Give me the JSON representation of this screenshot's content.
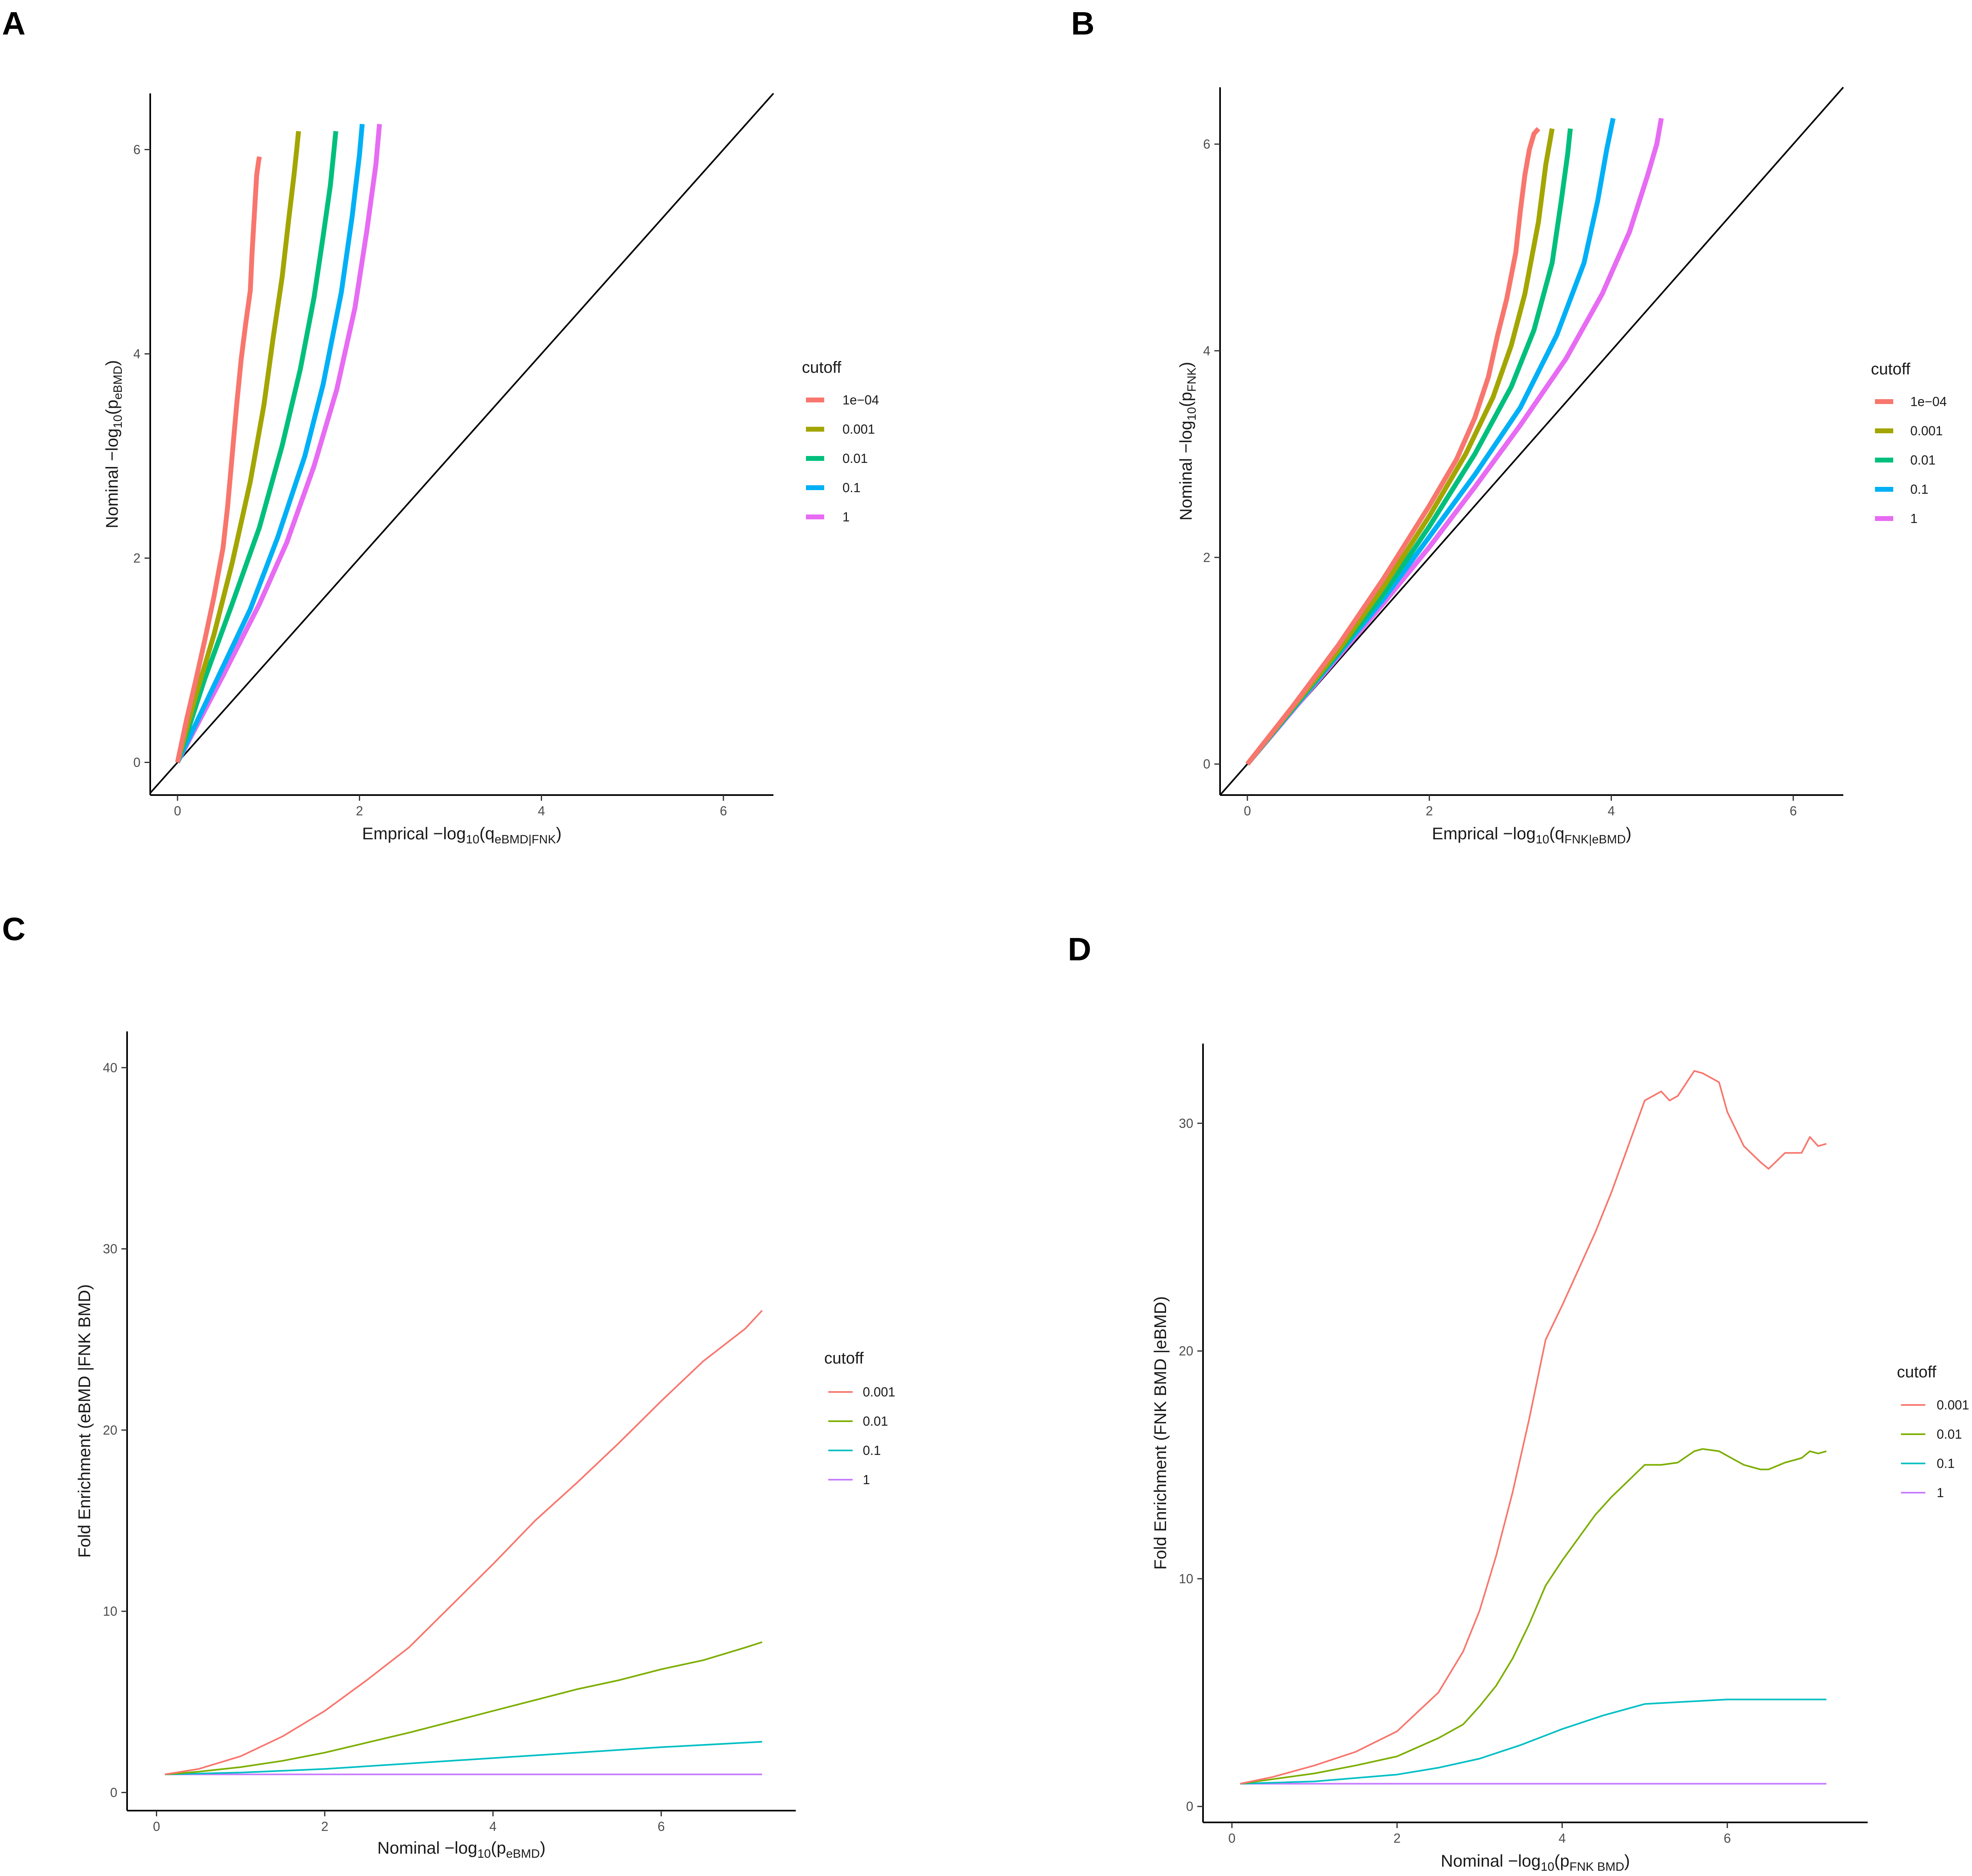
{
  "figure": {
    "panel_letters": [
      "A",
      "B",
      "C",
      "D"
    ]
  },
  "chart_data": [
    {
      "panel": "A",
      "type": "line",
      "title": "",
      "xlabel": "Emprical  −log10(qeBMD|FNK)",
      "xlabel_main": "Emprical  −log",
      "xlabel_base": "10",
      "xlabel_arg": "q",
      "xlabel_sub": "eBMD|FNK",
      "ylabel": "Nominal  −log10(peBMD)",
      "ylabel_main": "Nominal  −log",
      "ylabel_base": "10",
      "ylabel_arg": "p",
      "ylabel_sub": "eBMD",
      "xlim": [
        -0.3,
        6.55
      ],
      "ylim": [
        -0.32,
        6.55
      ],
      "xticks": [
        0,
        2,
        4,
        6
      ],
      "yticks": [
        0,
        2,
        4,
        6
      ],
      "xtick_labels": [
        "0",
        "2",
        "4",
        "6"
      ],
      "ytick_labels": [
        "0",
        "2",
        "4",
        "6"
      ],
      "grid": false,
      "legend": {
        "title": "cutoff",
        "placement": "right",
        "labels": [
          "1e−04",
          "0.001",
          "0.01",
          "0.1",
          "1"
        ]
      },
      "reference_line": "y = x",
      "series": [
        {
          "name": "1e-04",
          "color": "#F8766D",
          "x": [
            0,
            0.1,
            0.2,
            0.3,
            0.4,
            0.5,
            0.55,
            0.6,
            0.65,
            0.7,
            0.75,
            0.8,
            0.82,
            0.85,
            0.87,
            0.89,
            0.9
          ],
          "y": [
            0,
            0.42,
            0.8,
            1.2,
            1.62,
            2.1,
            2.5,
            3.0,
            3.5,
            3.95,
            4.3,
            4.62,
            5.0,
            5.45,
            5.75,
            5.88,
            5.93
          ]
        },
        {
          "name": "0.001",
          "color": "#A3A500",
          "x": [
            0,
            0.2,
            0.4,
            0.6,
            0.8,
            0.95,
            1.05,
            1.15,
            1.22,
            1.28,
            1.31,
            1.33
          ],
          "y": [
            0,
            0.65,
            1.25,
            1.95,
            2.75,
            3.5,
            4.15,
            4.75,
            5.3,
            5.75,
            6.0,
            6.18
          ]
        },
        {
          "name": "0.01",
          "color": "#00BF7D",
          "x": [
            0,
            0.3,
            0.6,
            0.9,
            1.15,
            1.35,
            1.5,
            1.6,
            1.68,
            1.72,
            1.74
          ],
          "y": [
            0,
            0.82,
            1.55,
            2.3,
            3.1,
            3.85,
            4.55,
            5.15,
            5.65,
            6.0,
            6.18
          ]
        },
        {
          "name": "0.1",
          "color": "#00B0F6",
          "x": [
            0,
            0.4,
            0.8,
            1.1,
            1.4,
            1.6,
            1.8,
            1.92,
            2.0,
            2.03
          ],
          "y": [
            0,
            0.75,
            1.5,
            2.2,
            3.0,
            3.7,
            4.6,
            5.35,
            5.95,
            6.25
          ]
        },
        {
          "name": "1",
          "color": "#E76BF3",
          "x": [
            0,
            0.5,
            0.9,
            1.2,
            1.5,
            1.75,
            1.95,
            2.08,
            2.18,
            2.22
          ],
          "y": [
            0,
            0.85,
            1.55,
            2.15,
            2.9,
            3.65,
            4.45,
            5.2,
            5.85,
            6.25
          ]
        }
      ]
    },
    {
      "panel": "B",
      "type": "line",
      "title": "",
      "xlabel": "Emprical  −log10(qFNK|eBMD)",
      "xlabel_main": "Emprical  −log",
      "xlabel_base": "10",
      "xlabel_arg": "q",
      "xlabel_sub": "FNK|eBMD",
      "ylabel": "Nominal  −log10(pFNK)",
      "ylabel_main": "Nominal  −log",
      "ylabel_base": "10",
      "ylabel_arg": "p",
      "ylabel_sub": "FNK",
      "xlim": [
        -0.3,
        6.55
      ],
      "ylim": [
        -0.3,
        6.55
      ],
      "xticks": [
        0,
        2,
        4,
        6
      ],
      "yticks": [
        0,
        2,
        4,
        6
      ],
      "xtick_labels": [
        "0",
        "2",
        "4",
        "6"
      ],
      "ytick_labels": [
        "0",
        "2",
        "4",
        "6"
      ],
      "grid": false,
      "legend": {
        "title": "cutoff",
        "placement": "right",
        "labels": [
          "1e−04",
          "0.001",
          "0.01",
          "0.1",
          "1"
        ]
      },
      "reference_line": "y = x",
      "series": [
        {
          "name": "1e-04",
          "color": "#F8766D",
          "x": [
            0,
            0.5,
            1.0,
            1.5,
            2.0,
            2.3,
            2.5,
            2.65,
            2.75,
            2.85,
            2.95,
            3.0,
            3.05,
            3.1,
            3.15,
            3.2
          ],
          "y": [
            0,
            0.56,
            1.15,
            1.8,
            2.5,
            2.95,
            3.35,
            3.75,
            4.15,
            4.5,
            4.95,
            5.35,
            5.7,
            5.95,
            6.1,
            6.15
          ]
        },
        {
          "name": "0.001",
          "color": "#A3A500",
          "x": [
            0,
            0.5,
            1.0,
            1.5,
            2.0,
            2.4,
            2.7,
            2.9,
            3.05,
            3.2,
            3.28,
            3.35
          ],
          "y": [
            0,
            0.55,
            1.1,
            1.72,
            2.4,
            3.0,
            3.55,
            4.05,
            4.55,
            5.25,
            5.8,
            6.15
          ]
        },
        {
          "name": "0.01",
          "color": "#00BF7D",
          "x": [
            0,
            0.5,
            1.0,
            1.5,
            2.0,
            2.5,
            2.9,
            3.15,
            3.35,
            3.45,
            3.52,
            3.55
          ],
          "y": [
            0,
            0.54,
            1.08,
            1.65,
            2.3,
            3.0,
            3.65,
            4.2,
            4.85,
            5.45,
            5.9,
            6.15
          ]
        },
        {
          "name": "0.1",
          "color": "#00B0F6",
          "x": [
            0,
            0.5,
            1.0,
            1.5,
            2.0,
            2.5,
            3.0,
            3.4,
            3.7,
            3.85,
            3.95,
            4.02
          ],
          "y": [
            0,
            0.53,
            1.06,
            1.6,
            2.2,
            2.8,
            3.45,
            4.15,
            4.85,
            5.45,
            5.95,
            6.25
          ]
        },
        {
          "name": "1",
          "color": "#E76BF3",
          "x": [
            0,
            0.5,
            1.0,
            1.5,
            2.0,
            2.5,
            3.0,
            3.5,
            3.9,
            4.2,
            4.4,
            4.5,
            4.55
          ],
          "y": [
            0,
            0.52,
            1.04,
            1.56,
            2.1,
            2.68,
            3.28,
            3.92,
            4.55,
            5.15,
            5.7,
            6.0,
            6.25
          ]
        }
      ]
    },
    {
      "panel": "C",
      "type": "line",
      "title": "",
      "xlabel": "Nominal −log10(peBMD)",
      "xlabel_main": "Nominal −log",
      "xlabel_base": "10",
      "xlabel_arg": "p",
      "xlabel_sub": "eBMD",
      "ylabel": "Fold Enrichment (eBMD |FNK BMD)",
      "ylabel_main": "Fold Enrichment (eBMD |FNK BMD)",
      "ylabel_base": "",
      "ylabel_arg": "",
      "ylabel_sub": "",
      "xlim": [
        -0.35,
        7.6
      ],
      "ylim": [
        -1.0,
        42.0
      ],
      "xticks": [
        0,
        2,
        4,
        6
      ],
      "yticks": [
        0,
        10,
        20,
        30,
        40
      ],
      "xtick_labels": [
        "0",
        "2",
        "4",
        "6"
      ],
      "ytick_labels": [
        "0",
        "10",
        "20",
        "30",
        "40"
      ],
      "grid": false,
      "legend": {
        "title": "cutoff",
        "placement": "right",
        "labels": [
          "0.001",
          "0.01",
          "0.1",
          "1"
        ]
      },
      "series": [
        {
          "name": "0.001",
          "color": "#F8766D",
          "x": [
            0.1,
            0.5,
            1.0,
            1.5,
            2.0,
            2.5,
            3.0,
            3.5,
            4.0,
            4.5,
            5.0,
            5.5,
            6.0,
            6.5,
            7.0,
            7.2
          ],
          "y": [
            1.0,
            1.3,
            2.0,
            3.1,
            4.5,
            6.2,
            8.0,
            10.3,
            12.6,
            15.0,
            17.1,
            19.3,
            21.6,
            23.8,
            25.6,
            26.6
          ]
        },
        {
          "name": "0.01",
          "color": "#7CAE00",
          "x": [
            0.1,
            0.5,
            1.0,
            1.5,
            2.0,
            2.5,
            3.0,
            3.5,
            4.0,
            4.5,
            5.0,
            5.5,
            6.0,
            6.5,
            7.0,
            7.2
          ],
          "y": [
            1.0,
            1.15,
            1.4,
            1.75,
            2.2,
            2.75,
            3.3,
            3.9,
            4.5,
            5.1,
            5.7,
            6.2,
            6.8,
            7.3,
            8.0,
            8.3
          ]
        },
        {
          "name": "0.1",
          "color": "#00BFC4",
          "x": [
            0.1,
            1.0,
            2.0,
            3.0,
            4.0,
            5.0,
            6.0,
            7.2
          ],
          "y": [
            1.0,
            1.1,
            1.3,
            1.6,
            1.9,
            2.2,
            2.5,
            2.8
          ]
        },
        {
          "name": "1",
          "color": "#C77CFF",
          "x": [
            0.1,
            7.2
          ],
          "y": [
            1.0,
            1.0
          ]
        }
      ]
    },
    {
      "panel": "D",
      "type": "line",
      "title": "",
      "xlabel": "Nominal −log10(pFNK BMD)",
      "xlabel_main": "Nominal −log",
      "xlabel_base": "10",
      "xlabel_arg": "p",
      "xlabel_sub": "FNK BMD",
      "ylabel": "Fold Enrichment (FNK BMD |eBMD)",
      "ylabel_main": "Fold Enrichment (FNK BMD |eBMD)",
      "ylabel_base": "",
      "ylabel_arg": "",
      "ylabel_sub": "",
      "xlim": [
        -0.35,
        7.7
      ],
      "ylim": [
        -0.7,
        33.5
      ],
      "xticks": [
        0,
        2,
        4,
        6
      ],
      "yticks": [
        0,
        10,
        20,
        30
      ],
      "xtick_labels": [
        "0",
        "2",
        "4",
        "6"
      ],
      "ytick_labels": [
        "0",
        "10",
        "20",
        "30"
      ],
      "grid": false,
      "legend": {
        "title": "cutoff",
        "placement": "right",
        "labels": [
          "0.001",
          "0.01",
          "0.1",
          "1"
        ]
      },
      "series": [
        {
          "name": "0.001",
          "color": "#F8766D",
          "x": [
            0.1,
            0.5,
            1.0,
            1.5,
            2.0,
            2.5,
            2.8,
            3.0,
            3.2,
            3.4,
            3.6,
            3.8,
            4.0,
            4.2,
            4.4,
            4.6,
            4.8,
            5.0,
            5.2,
            5.3,
            5.4,
            5.6,
            5.7,
            5.9,
            6.0,
            6.2,
            6.4,
            6.5,
            6.7,
            6.9,
            7.0,
            7.1,
            7.2
          ],
          "y": [
            1.0,
            1.3,
            1.8,
            2.4,
            3.3,
            5.0,
            6.8,
            8.6,
            11.0,
            13.8,
            17.0,
            20.5,
            22.0,
            23.6,
            25.2,
            27.0,
            29.0,
            31.0,
            31.4,
            31.0,
            31.2,
            32.3,
            32.2,
            31.8,
            30.5,
            29.0,
            28.3,
            28.0,
            28.7,
            28.7,
            29.4,
            29.0,
            29.1
          ]
        },
        {
          "name": "0.01",
          "color": "#7CAE00",
          "x": [
            0.1,
            0.5,
            1.0,
            1.5,
            2.0,
            2.5,
            2.8,
            3.0,
            3.2,
            3.4,
            3.6,
            3.8,
            4.0,
            4.2,
            4.4,
            4.6,
            4.8,
            5.0,
            5.2,
            5.4,
            5.6,
            5.7,
            5.9,
            6.0,
            6.2,
            6.4,
            6.5,
            6.7,
            6.9,
            7.0,
            7.1,
            7.2
          ],
          "y": [
            1.0,
            1.2,
            1.45,
            1.8,
            2.2,
            3.0,
            3.6,
            4.4,
            5.3,
            6.5,
            8.0,
            9.7,
            10.8,
            11.8,
            12.8,
            13.6,
            14.3,
            15.0,
            15.0,
            15.1,
            15.6,
            15.7,
            15.6,
            15.4,
            15.0,
            14.8,
            14.8,
            15.1,
            15.3,
            15.6,
            15.5,
            15.6
          ]
        },
        {
          "name": "0.1",
          "color": "#00BFC4",
          "x": [
            0.1,
            1.0,
            2.0,
            2.5,
            3.0,
            3.5,
            4.0,
            4.5,
            5.0,
            5.5,
            6.0,
            6.5,
            7.0,
            7.2
          ],
          "y": [
            1.0,
            1.1,
            1.4,
            1.7,
            2.1,
            2.7,
            3.4,
            4.0,
            4.5,
            4.6,
            4.7,
            4.7,
            4.7,
            4.7
          ]
        },
        {
          "name": "1",
          "color": "#C77CFF",
          "x": [
            0.1,
            7.2
          ],
          "y": [
            1.0,
            1.0
          ]
        }
      ]
    }
  ]
}
